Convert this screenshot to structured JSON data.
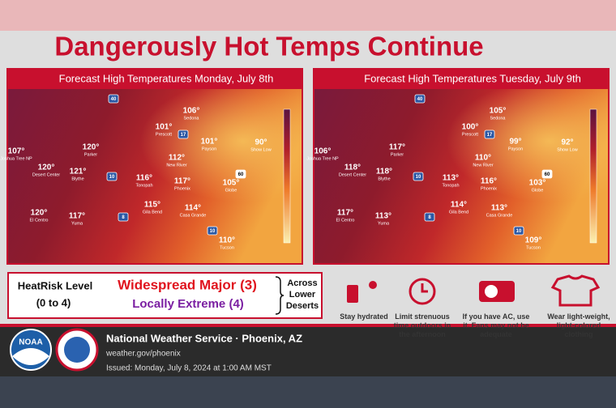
{
  "header": {
    "title": "Dangerously Hot Temps Continue"
  },
  "maps": [
    {
      "heading": "Forecast High Temperatures Monday, July 8th",
      "cities": [
        {
          "temp": "107°",
          "name": "Joshua Tree NP"
        },
        {
          "temp": "120°",
          "name": "Desert Center"
        },
        {
          "temp": "120°",
          "name": "Parker"
        },
        {
          "temp": "121°",
          "name": "Blythe"
        },
        {
          "temp": "116°",
          "name": "Tonopah"
        },
        {
          "temp": "101°",
          "name": "Prescott"
        },
        {
          "temp": "106°",
          "name": "Sedona"
        },
        {
          "temp": "101°",
          "name": "Payson"
        },
        {
          "temp": "112°",
          "name": "New River"
        },
        {
          "temp": "117°",
          "name": "Phoenix"
        },
        {
          "temp": "90°",
          "name": "Show Low"
        },
        {
          "temp": "105°",
          "name": "Globe"
        },
        {
          "temp": "120°",
          "name": "El Centro"
        },
        {
          "temp": "117°",
          "name": "Yuma"
        },
        {
          "temp": "115°",
          "name": "Gila Bend"
        },
        {
          "temp": "114°",
          "name": "Casa Grande"
        },
        {
          "temp": "110°",
          "name": "Tucson"
        }
      ],
      "shields": [
        "40",
        "17",
        "10",
        "8",
        "60",
        "10"
      ]
    },
    {
      "heading": "Forecast High Temperatures Tuesday, July 9th",
      "cities": [
        {
          "temp": "106°",
          "name": "Joshua Tree NP"
        },
        {
          "temp": "118°",
          "name": "Desert Center"
        },
        {
          "temp": "117°",
          "name": "Parker"
        },
        {
          "temp": "118°",
          "name": "Blythe"
        },
        {
          "temp": "113°",
          "name": "Tonopah"
        },
        {
          "temp": "100°",
          "name": "Prescott"
        },
        {
          "temp": "105°",
          "name": "Sedona"
        },
        {
          "temp": "99°",
          "name": "Payson"
        },
        {
          "temp": "110°",
          "name": "New River"
        },
        {
          "temp": "116°",
          "name": "Phoenix"
        },
        {
          "temp": "92°",
          "name": "Show Low"
        },
        {
          "temp": "103°",
          "name": "Globe"
        },
        {
          "temp": "117°",
          "name": "El Centro"
        },
        {
          "temp": "113°",
          "name": "Yuma"
        },
        {
          "temp": "114°",
          "name": "Gila Bend"
        },
        {
          "temp": "113°",
          "name": "Casa Grande"
        },
        {
          "temp": "109°",
          "name": "Tucson"
        }
      ],
      "shields": [
        "40",
        "17",
        "10",
        "8",
        "60",
        "10"
      ]
    }
  ],
  "heatrisk": {
    "label": "HeatRisk Level",
    "range": "(0 to 4)",
    "major": "Widespread Major (3)",
    "extreme": "Locally Extreme (4)",
    "area": "Across Lower Deserts"
  },
  "tips": [
    "Stay hydrated",
    "Limit strenuous time outdoors in the afternoon",
    "If you have AC, use it. Fans may not be adequate",
    "Wear light-weight, light-colored clothing"
  ],
  "footer": {
    "office": "National Weather Service · Phoenix, AZ",
    "url": "weather.gov/phoenix",
    "issued": "Issued: Monday, July 8, 2024 at 1:00 AM MST",
    "logo": "NOAA"
  }
}
